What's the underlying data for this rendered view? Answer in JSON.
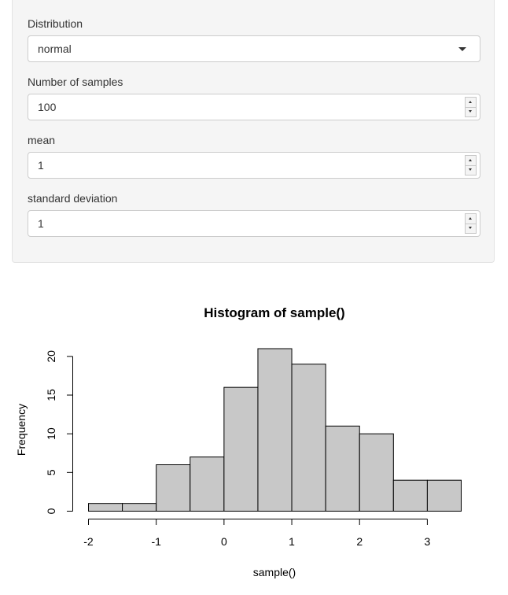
{
  "form": {
    "distribution": {
      "label": "Distribution",
      "value": "normal"
    },
    "num_samples": {
      "label": "Number of samples",
      "value": "100"
    },
    "mean": {
      "label": "mean",
      "value": "1"
    },
    "sd": {
      "label": "standard deviation",
      "value": "1"
    }
  },
  "chart_data": {
    "type": "bar",
    "title": "Histogram of sample()",
    "xlabel": "sample()",
    "ylabel": "Frequency",
    "bin_edges": [
      -2,
      -1.5,
      -1,
      -0.5,
      0,
      0.5,
      1,
      1.5,
      2,
      2.5,
      3,
      3.5
    ],
    "values": [
      1,
      1,
      6,
      7,
      16,
      21,
      19,
      11,
      10,
      4,
      4
    ],
    "x_ticks": [
      -2,
      -1,
      0,
      1,
      2,
      3
    ],
    "y_ticks": [
      0,
      5,
      10,
      15,
      20
    ],
    "xlim": [
      -2,
      3.5
    ],
    "ylim": [
      0,
      21
    ],
    "grid": false,
    "bar_color": "#c8c8c8"
  }
}
